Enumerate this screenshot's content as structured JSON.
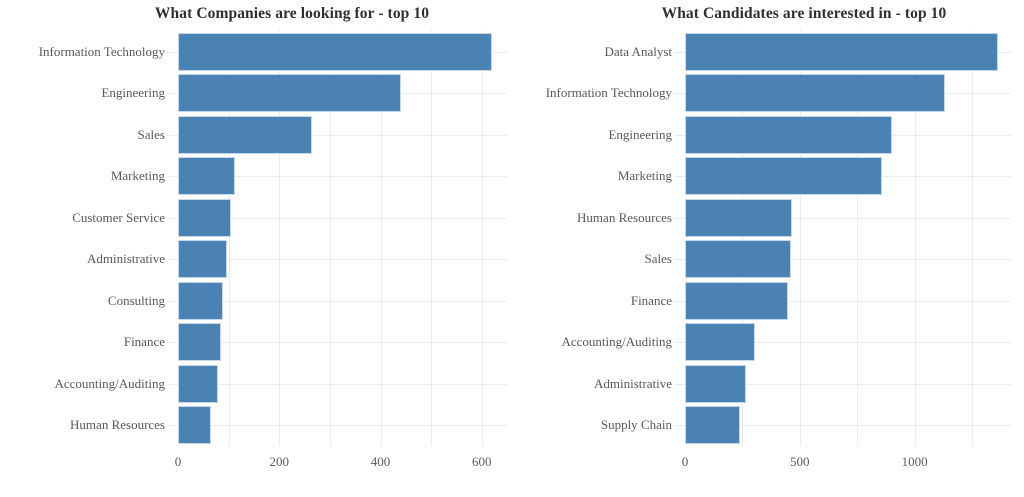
{
  "colors": {
    "background": "#ffffff",
    "bar_fill": "#4a82b4",
    "bar_border": "#c7d8ea",
    "gridline": "#ececec",
    "title_text": "#2f2f2f",
    "label_text": "#585858",
    "tick_text": "#5b5b5b"
  },
  "chart_data": [
    {
      "type": "bar",
      "orientation": "horizontal",
      "title": "What Companies are looking for - top 10",
      "categories": [
        "Information Technology",
        "Engineering",
        "Sales",
        "Marketing",
        "Customer Service",
        "Administrative",
        "Consulting",
        "Finance",
        "Accounting/Auditing",
        "Human Resources"
      ],
      "values": [
        620,
        440,
        265,
        113,
        105,
        97,
        88,
        84,
        79,
        66
      ],
      "xlabel": "",
      "ylabel": "",
      "xticks": [
        0,
        200,
        400,
        600
      ],
      "gridline_values": [
        100,
        200,
        300,
        400,
        500,
        600
      ],
      "xlim": [
        0,
        650
      ],
      "grid": true,
      "legend": false
    },
    {
      "type": "bar",
      "orientation": "horizontal",
      "title": "What Candidates are interested in - top 10",
      "categories": [
        "Data Analyst",
        "Information Technology",
        "Engineering",
        "Marketing",
        "Human Resources",
        "Sales",
        "Finance",
        "Accounting/Auditing",
        "Administrative",
        "Supply Chain"
      ],
      "values": [
        1362,
        1134,
        900,
        856,
        464,
        462,
        447,
        306,
        267,
        239
      ],
      "xlabel": "",
      "ylabel": "",
      "xticks": [
        0,
        500,
        1000
      ],
      "gridline_values": [
        250,
        500,
        750,
        1000,
        1250
      ],
      "xlim": [
        0,
        1420
      ],
      "grid": true,
      "legend": false
    }
  ]
}
